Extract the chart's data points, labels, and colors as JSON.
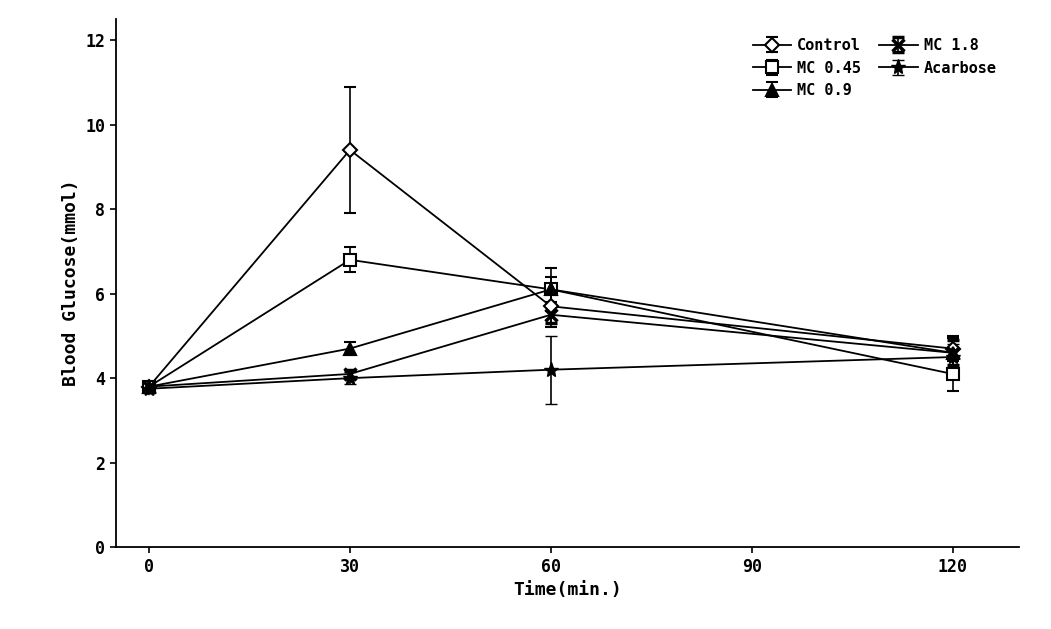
{
  "title": "",
  "xlabel": "Time(min.)",
  "ylabel": "Blood Glucose(mmol)",
  "x": [
    0,
    30,
    60,
    120
  ],
  "xticks": [
    0,
    30,
    60,
    90,
    120
  ],
  "yticks": [
    0,
    2,
    4,
    6,
    8,
    10,
    12
  ],
  "ylim": [
    0,
    12.5
  ],
  "xlim": [
    -5,
    130
  ],
  "series": {
    "Control": {
      "y": [
        3.8,
        9.4,
        5.7,
        4.7
      ],
      "yerr": [
        0.1,
        1.5,
        0.5,
        0.3
      ]
    },
    "MC 0.45": {
      "y": [
        3.8,
        6.8,
        6.1,
        4.1
      ],
      "yerr": [
        0.1,
        0.3,
        0.5,
        0.4
      ]
    },
    "MC 0.9": {
      "y": [
        3.8,
        4.7,
        6.1,
        4.6
      ],
      "yerr": [
        0.1,
        0.15,
        0.3,
        0.35
      ]
    },
    "MC 1.8": {
      "y": [
        3.8,
        4.1,
        5.5,
        4.6
      ],
      "yerr": [
        0.1,
        0.1,
        0.2,
        0.3
      ]
    },
    "Acarbose": {
      "y": [
        3.75,
        4.0,
        4.2,
        4.5
      ],
      "yerr": [
        0.1,
        0.15,
        0.8,
        0.3
      ]
    }
  },
  "legend_order": [
    "Control",
    "MC 0.45",
    "MC 0.9",
    "MC 1.8",
    "Acarbose"
  ],
  "background_color": "#ffffff",
  "font_size": 12
}
